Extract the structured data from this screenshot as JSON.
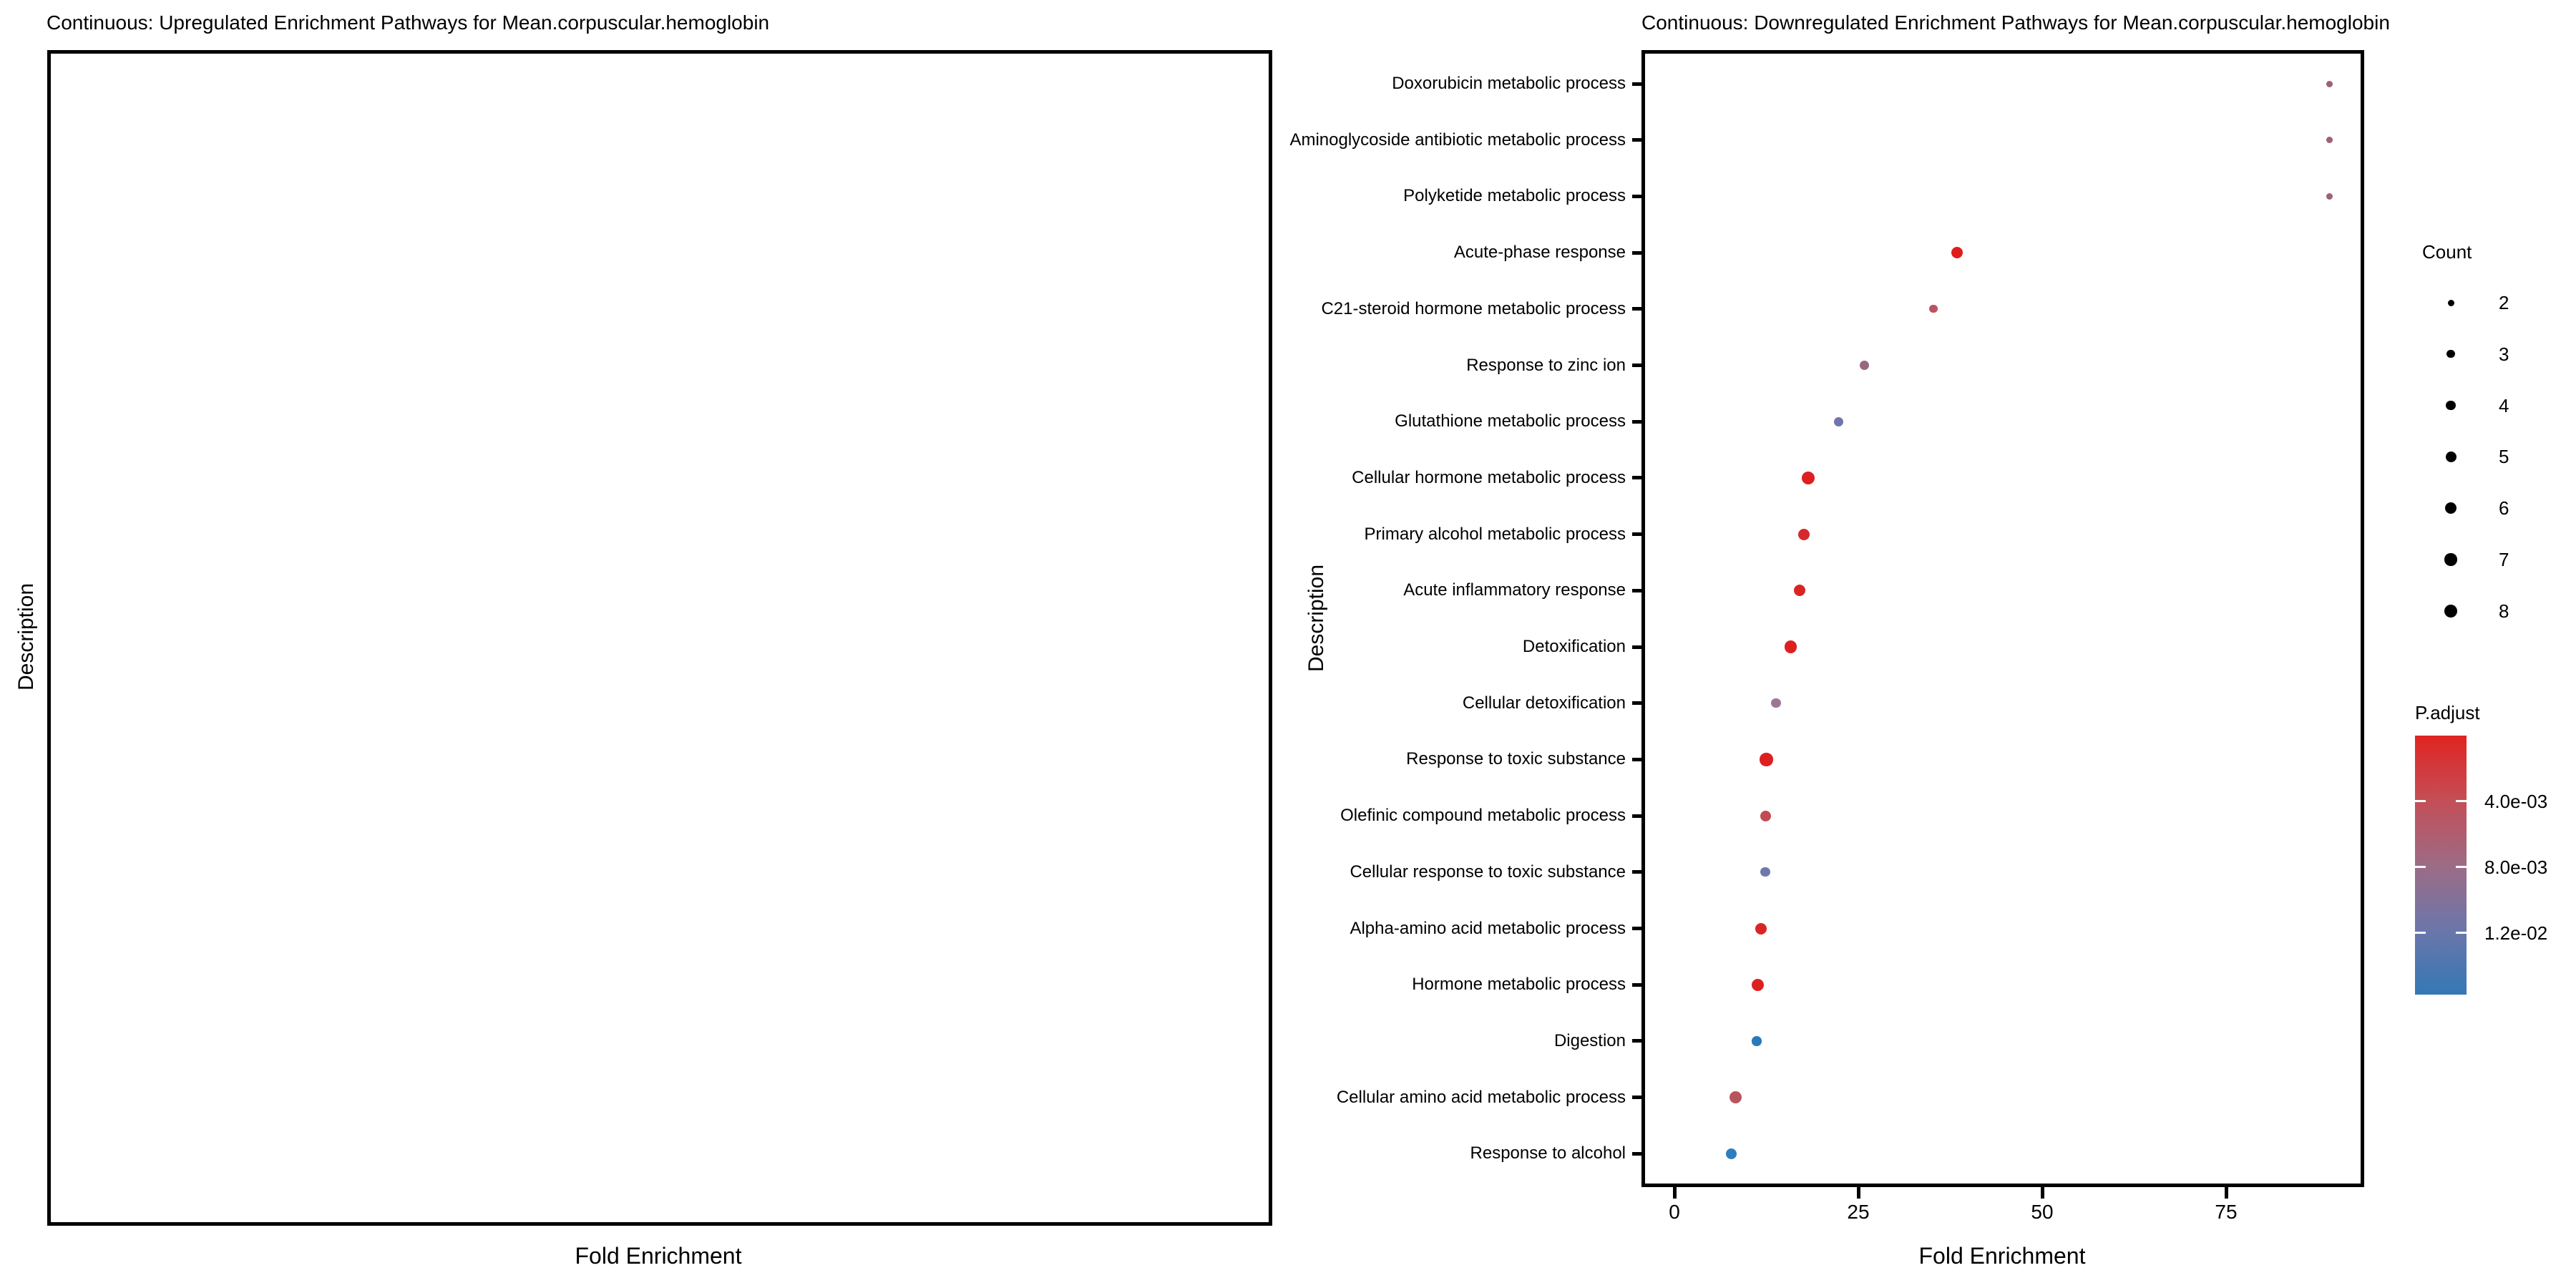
{
  "left_panel": {
    "title": "Continuous: Upregulated Enrichment Pathways for Mean.corpuscular.hemoglobin",
    "x_axis_label": "Fold Enrichment",
    "y_axis_label": "Description"
  },
  "right_panel": {
    "title": "Continuous: Downregulated Enrichment Pathways for Mean.corpuscular.hemoglobin",
    "x_axis_label": "Fold Enrichment",
    "y_axis_label": "Description",
    "x_tick_labels": [
      "0",
      "25",
      "50",
      "75"
    ]
  },
  "legend_count": {
    "title": "Count",
    "entries": [
      2,
      3,
      4,
      5,
      6,
      7,
      8
    ]
  },
  "legend_padjust": {
    "title": "P.adjust",
    "tick_values": [
      0.004,
      0.008,
      0.012
    ],
    "tick_labels": [
      "4.0e-03",
      "8.0e-03",
      "1.2e-02"
    ],
    "scale_min": 0,
    "scale_max": 0.01575,
    "gradient": [
      "#e02421",
      "#c44e57",
      "#9d6b85",
      "#6b76aa",
      "#3578b5"
    ]
  },
  "chart_data": [
    {
      "type": "scatter",
      "title": "Continuous: Upregulated Enrichment Pathways for Mean.corpuscular.hemoglobin",
      "xlabel": "Fold Enrichment",
      "ylabel": "Description",
      "points": [],
      "note": "panel is empty - no upregulated enriched pathways shown"
    },
    {
      "type": "scatter",
      "title": "Continuous: Downregulated Enrichment Pathways for Mean.corpuscular.hemoglobin",
      "xlabel": "Fold Enrichment",
      "ylabel": "Description",
      "x_ticks": [
        0,
        25,
        50,
        75
      ],
      "xlim": [
        -4,
        93
      ],
      "legend_size": "Count",
      "legend_color": "P.adjust",
      "points": [
        {
          "description": "Doxorubicin metabolic process",
          "fold_enrichment": 89.1,
          "count": 2,
          "p_adjust": 0.0088,
          "color": "#9c6078"
        },
        {
          "description": "Aminoglycoside antibiotic metabolic process",
          "fold_enrichment": 89.1,
          "count": 2,
          "p_adjust": 0.0088,
          "color": "#9c6078"
        },
        {
          "description": "Polyketide metabolic process",
          "fold_enrichment": 89.1,
          "count": 2,
          "p_adjust": 0.0088,
          "color": "#9c6078"
        },
        {
          "description": "Acute-phase response",
          "fold_enrichment": 38.4,
          "count": 6,
          "p_adjust": 0.001,
          "color": "#df1e1c"
        },
        {
          "description": "C21-steroid hormone metabolic process",
          "fold_enrichment": 35.2,
          "count": 3,
          "p_adjust": 0.0055,
          "color": "#bb5260"
        },
        {
          "description": "Response to zinc ion",
          "fold_enrichment": 25.8,
          "count": 4,
          "p_adjust": 0.008,
          "color": "#99687f"
        },
        {
          "description": "Glutathione metabolic process",
          "fold_enrichment": 22.3,
          "count": 4,
          "p_adjust": 0.0118,
          "color": "#7076ac"
        },
        {
          "description": "Cellular hormone metabolic process",
          "fold_enrichment": 18.2,
          "count": 8,
          "p_adjust": 0.0008,
          "color": "#dc2020"
        },
        {
          "description": "Primary alcohol metabolic process",
          "fold_enrichment": 17.6,
          "count": 6,
          "p_adjust": 0.002,
          "color": "#d52a2b"
        },
        {
          "description": "Acute inflammatory response",
          "fold_enrichment": 17.0,
          "count": 6,
          "p_adjust": 0.0013,
          "color": "#da2424"
        },
        {
          "description": "Detoxification",
          "fold_enrichment": 15.8,
          "count": 7,
          "p_adjust": 0.0008,
          "color": "#dc2020"
        },
        {
          "description": "Cellular detoxification",
          "fold_enrichment": 13.8,
          "count": 4,
          "p_adjust": 0.009,
          "color": "#9c7795"
        },
        {
          "description": "Response to toxic substance",
          "fold_enrichment": 12.5,
          "count": 8,
          "p_adjust": 0.0008,
          "color": "#dc2020"
        },
        {
          "description": "Olefinic compound metabolic process",
          "fold_enrichment": 12.45,
          "count": 5,
          "p_adjust": 0.0045,
          "color": "#c24a52"
        },
        {
          "description": "Cellular response to toxic substance",
          "fold_enrichment": 12.35,
          "count": 4,
          "p_adjust": 0.012,
          "color": "#7078ab"
        },
        {
          "description": "Alpha-amino acid metabolic process",
          "fold_enrichment": 11.8,
          "count": 6,
          "p_adjust": 0.0013,
          "color": "#da2525"
        },
        {
          "description": "Hormone metabolic process",
          "fold_enrichment": 11.3,
          "count": 7,
          "p_adjust": 0.0009,
          "color": "#dc2020"
        },
        {
          "description": "Digestion",
          "fold_enrichment": 11.2,
          "count": 4,
          "p_adjust": 0.0155,
          "color": "#2a79b9"
        },
        {
          "description": "Cellular amino acid metabolic process",
          "fold_enrichment": 8.3,
          "count": 7,
          "p_adjust": 0.0053,
          "color": "#b8545c"
        },
        {
          "description": "Response to alcohol",
          "fold_enrichment": 7.7,
          "count": 5,
          "p_adjust": 0.015,
          "color": "#2e7dbc"
        }
      ]
    }
  ]
}
